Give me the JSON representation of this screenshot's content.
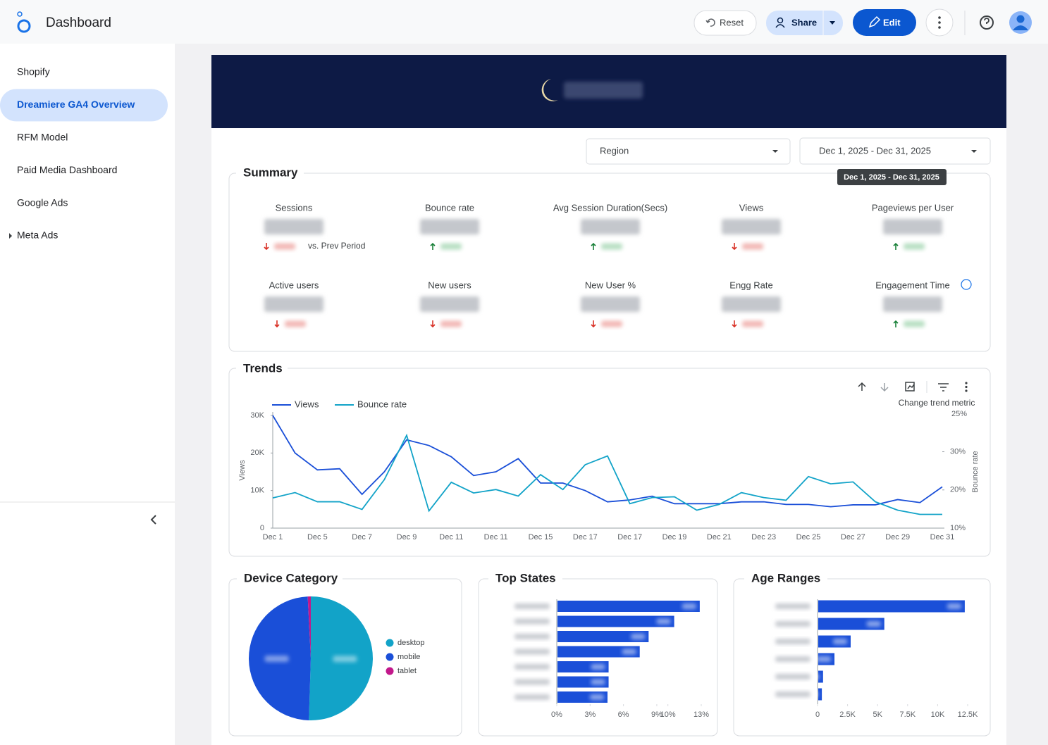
{
  "header": {
    "title": "Dashboard",
    "buttons": [
      "Reset",
      "Share",
      "Edit"
    ]
  },
  "sidebar": {
    "items": [
      "Shopify",
      "Dreamiere GA4 Overview",
      "RFM Model",
      "Paid Media Dashboard",
      "Google Ads",
      "Meta Ads"
    ],
    "active": 1
  },
  "filters": {
    "region": "Region",
    "date_range": "Dec 1, 2025 - Dec 31, 2025"
  },
  "summary": {
    "title": "Summary",
    "comparison_label": "vs. Prev Period",
    "metrics": [
      {
        "label": "Sessions",
        "trend": "down"
      },
      {
        "label": "Bounce rate",
        "trend": "up"
      },
      {
        "label": "Avg Session Duration(Secs)",
        "trend": "up"
      },
      {
        "label": "Views",
        "trend": "down"
      },
      {
        "label": "Pageviews per User",
        "trend": "up"
      },
      {
        "label": "Active users",
        "trend": "down"
      },
      {
        "label": "New users",
        "trend": "down"
      },
      {
        "label": "New User %",
        "trend": "down"
      },
      {
        "label": "Engg Rate",
        "trend": "down"
      },
      {
        "label": "Engagement Time",
        "trend": "up"
      }
    ]
  },
  "trend_toolbar": {
    "label": "Change trend metric"
  },
  "chart_data": [
    {
      "type": "line",
      "title": "Trends",
      "y_label": "Views",
      "y2_label": "Bounce rate",
      "y2_top_label": "25%",
      "categories": [
        "Dec 1",
        null,
        "Dec 5",
        null,
        "Dec 7",
        null,
        "Dec 9",
        null,
        "Dec 11",
        null,
        "Dec 11",
        null,
        "Dec 15",
        null,
        "Dec 17",
        null,
        "Dec 17",
        null,
        "Dec 19",
        null,
        "Dec 21",
        null,
        "Dec 23",
        null,
        "Dec 25",
        null,
        "Dec 27",
        null,
        "Dec 29",
        null,
        "Dec 31"
      ],
      "series": [
        {
          "name": "Views",
          "color": "#1a4fd8",
          "values": [
            30000,
            20000,
            15500,
            15800,
            9000,
            15000,
            23500,
            22000,
            19000,
            14000,
            15000,
            18500,
            12000,
            12000,
            10000,
            7000,
            7500,
            8500,
            6500,
            6500,
            6500,
            7000,
            7000,
            6300,
            6300,
            5700,
            6200,
            6200,
            7600,
            6800,
            11000
          ]
        },
        {
          "name": "Bounce rate",
          "color": "#12a3c8",
          "axis": "y2",
          "values": [
            17.9,
            19.3,
            16.9,
            16.9,
            14.9,
            22.7,
            34.3,
            14.5,
            22,
            19.2,
            20.1,
            18.4,
            24,
            20.1,
            26.6,
            28.9,
            16.4,
            18,
            18.2,
            14.7,
            16.2,
            19.3,
            18,
            17.3,
            23.5,
            21.6,
            22.1,
            16.9,
            14.7,
            13.6,
            13.6
          ]
        }
      ],
      "ylim": [
        0,
        30000
      ],
      "yticks": [
        0,
        {
          "value": 10000,
          "label": "10K"
        },
        {
          "value": 20000,
          "label": "20K"
        },
        {
          "value": 30000,
          "label": "30K"
        }
      ],
      "y2lim": [
        10,
        39.5
      ],
      "y2ticks": [
        {
          "value": 10,
          "label": "10%"
        },
        {
          "value": 20,
          "label": "20%"
        },
        {
          "value": 30,
          "label": "30%"
        }
      ],
      "legend": "top-left"
    },
    {
      "type": "pie",
      "title": "Device Category",
      "categories": [
        "desktop",
        "mobile",
        "tablet"
      ],
      "values": [
        50.5,
        48.7,
        0.8
      ],
      "colors": [
        "#12a3c8",
        "#1a4fd8",
        "#c2188b"
      ],
      "legend": "right"
    },
    {
      "type": "hbar",
      "title": "Top States",
      "categories": [
        null,
        null,
        null,
        null,
        null,
        null,
        null
      ],
      "values": [
        12.8,
        10.5,
        8.2,
        7.4,
        4.6,
        4.6,
        4.5
      ],
      "color": "#1a4fd8",
      "xlim": [
        0,
        13
      ],
      "xticks": [
        {
          "value": 0,
          "label": "0%"
        },
        {
          "value": 3,
          "label": "3%"
        },
        {
          "value": 6,
          "label": "6%"
        },
        {
          "value": 9,
          "label": "9%"
        },
        {
          "value": 10,
          "label": "10%"
        },
        {
          "value": 13,
          "label": "13%"
        }
      ]
    },
    {
      "type": "hbar",
      "title": "Age Ranges",
      "categories": [
        null,
        null,
        null,
        null,
        null,
        null
      ],
      "values": [
        12200,
        5500,
        2700,
        1350,
        400,
        300
      ],
      "color": "#1a4fd8",
      "xlim": [
        0,
        12500
      ],
      "xticks": [
        0,
        {
          "value": 2500,
          "label": "2.5K"
        },
        {
          "value": 5000,
          "label": "5K"
        },
        {
          "value": 7500,
          "label": "7.5K"
        },
        {
          "value": 10000,
          "label": "10K"
        },
        {
          "value": 12500,
          "label": "12.5K"
        }
      ]
    }
  ]
}
